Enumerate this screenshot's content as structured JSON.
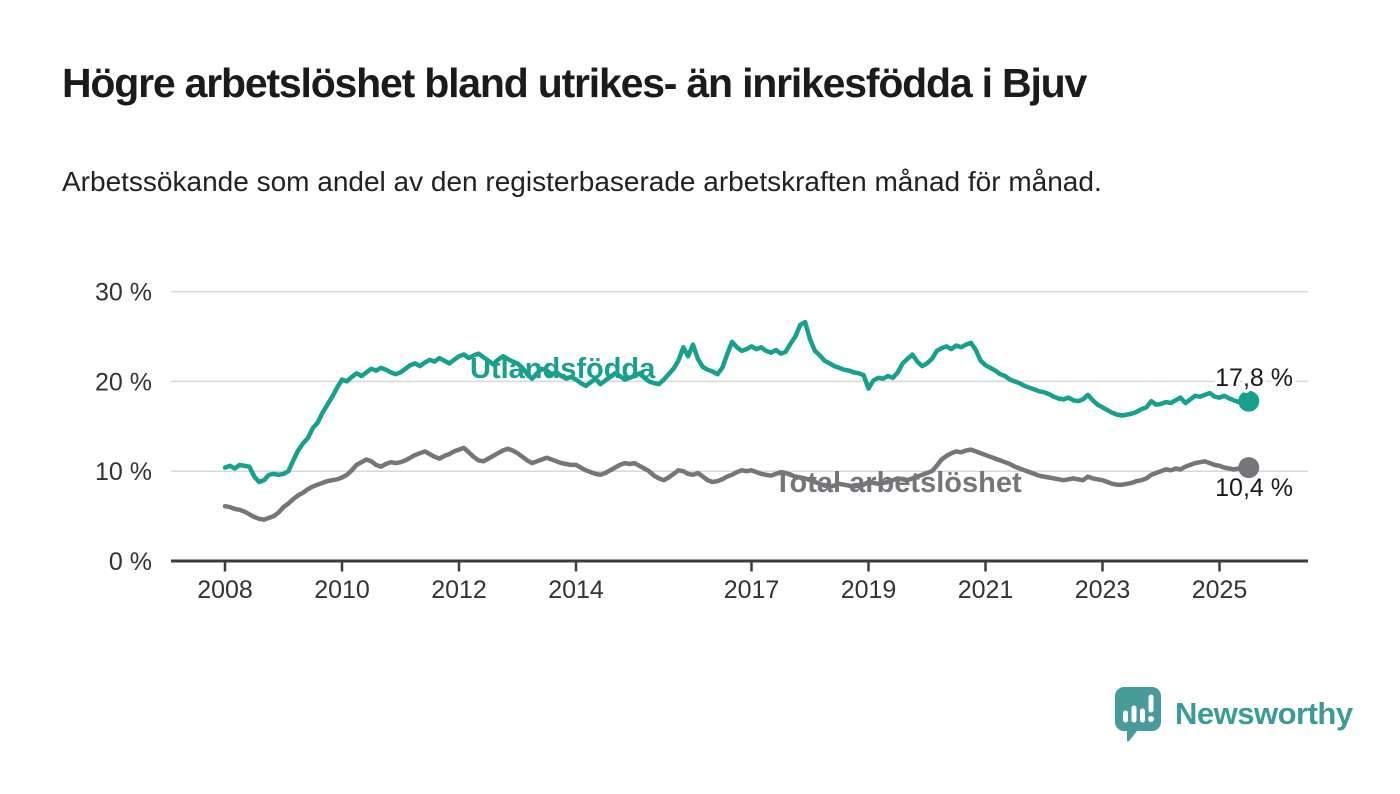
{
  "header": {
    "title": "Högre arbetslöshet bland utrikes- än inrikesfödda i Bjuv",
    "subtitle": "Arbetssökande som andel av den registerbaserade arbetskraften månad för månad."
  },
  "colors": {
    "teal_series": "#17A08C",
    "gray_series": "#76767A",
    "grid": "#D8D8D8",
    "axis": "#3B3B3B",
    "tick_text": "#333333",
    "value_text": "#1A1A1A",
    "logo_teal": "#479B98",
    "wordmark_teal": "#3E9A97"
  },
  "chart_data": {
    "type": "line",
    "title": "Högre arbetslöshet bland utrikes- än inrikesfödda i Bjuv",
    "subtitle": "Arbetssökande som andel av den registerbaserade arbetskraften månad för månad.",
    "x_start_year": 2008,
    "x_months_per_point": 1,
    "x_tick_years": [
      2008,
      2010,
      2012,
      2014,
      2017,
      2019,
      2021,
      2023,
      2025
    ],
    "x_tick_labels": [
      "2008",
      "2010",
      "2012",
      "2014",
      "2017",
      "2019",
      "2021",
      "2023",
      "2025"
    ],
    "y_ticks": [
      0,
      10,
      20,
      30
    ],
    "y_tick_labels": [
      "0 %",
      "10 %",
      "20 %",
      "30 %"
    ],
    "ylim": [
      0,
      30
    ],
    "grid": true,
    "legend_position": "inline-labels",
    "series": [
      {
        "name": "Utlandsfödda",
        "end_label": "17,8 %",
        "end_value": 17.8,
        "color": "#17A08C",
        "values": [
          10.4,
          10.6,
          10.3,
          10.7,
          10.6,
          10.5,
          9.4,
          8.8,
          9.0,
          9.6,
          9.7,
          9.6,
          9.7,
          10.0,
          11.2,
          12.3,
          13.1,
          13.7,
          14.8,
          15.4,
          16.5,
          17.4,
          18.3,
          19.3,
          20.2,
          20.0,
          20.5,
          20.9,
          20.6,
          21.0,
          21.4,
          21.2,
          21.5,
          21.3,
          21.0,
          20.8,
          21.0,
          21.4,
          21.8,
          22.0,
          21.7,
          22.1,
          22.4,
          22.2,
          22.6,
          22.3,
          22.0,
          22.4,
          22.8,
          23.0,
          22.6,
          22.9,
          23.1,
          22.7,
          22.3,
          21.9,
          22.4,
          22.8,
          22.5,
          22.2,
          22.0,
          21.5,
          20.8,
          20.3,
          20.9,
          21.4,
          21.2,
          20.8,
          21.0,
          20.6,
          20.3,
          20.5,
          20.2,
          19.8,
          19.5,
          19.9,
          20.3,
          19.7,
          20.1,
          20.5,
          20.9,
          20.6,
          20.2,
          20.4,
          20.6,
          20.9,
          20.4,
          20.0,
          19.8,
          19.7,
          20.2,
          20.8,
          21.4,
          22.3,
          23.8,
          22.8,
          24.1,
          22.5,
          21.6,
          21.3,
          21.1,
          20.8,
          21.5,
          23.0,
          24.4,
          23.8,
          23.4,
          23.6,
          23.9,
          23.6,
          23.8,
          23.4,
          23.2,
          23.5,
          23.1,
          23.3,
          24.2,
          25.0,
          26.3,
          26.6,
          24.7,
          23.4,
          22.9,
          22.3,
          22.0,
          21.7,
          21.5,
          21.3,
          21.2,
          21.0,
          20.9,
          20.7,
          19.2,
          20.1,
          20.4,
          20.3,
          20.6,
          20.4,
          21.0,
          22.0,
          22.5,
          23.0,
          22.2,
          21.7,
          22.0,
          22.5,
          23.4,
          23.7,
          23.9,
          23.6,
          24.0,
          23.8,
          24.1,
          24.3,
          23.5,
          22.3,
          21.8,
          21.5,
          21.2,
          20.8,
          20.6,
          20.2,
          20.0,
          19.8,
          19.5,
          19.3,
          19.1,
          18.9,
          18.8,
          18.6,
          18.3,
          18.1,
          18.0,
          18.2,
          17.9,
          17.8,
          18.0,
          18.5,
          17.9,
          17.4,
          17.1,
          16.8,
          16.5,
          16.3,
          16.2,
          16.3,
          16.4,
          16.6,
          16.9,
          17.1,
          17.8,
          17.4,
          17.5,
          17.7,
          17.6,
          17.9,
          18.2,
          17.6,
          18.0,
          18.4,
          18.3,
          18.5,
          18.7,
          18.3,
          18.2,
          18.4,
          18.1,
          17.9,
          17.7,
          17.6,
          17.8
        ]
      },
      {
        "name": "Total arbetslöshet",
        "end_label": "10,4 %",
        "end_value": 10.4,
        "color": "#76767A",
        "values": [
          6.1,
          6.0,
          5.8,
          5.7,
          5.5,
          5.2,
          4.9,
          4.7,
          4.6,
          4.8,
          5.0,
          5.4,
          6.0,
          6.4,
          6.9,
          7.3,
          7.6,
          8.0,
          8.3,
          8.5,
          8.7,
          8.9,
          9.0,
          9.1,
          9.3,
          9.6,
          10.1,
          10.7,
          11.0,
          11.3,
          11.1,
          10.7,
          10.5,
          10.8,
          11.0,
          10.9,
          11.0,
          11.2,
          11.5,
          11.8,
          12.0,
          12.2,
          11.9,
          11.6,
          11.4,
          11.7,
          11.9,
          12.2,
          12.4,
          12.6,
          12.1,
          11.6,
          11.2,
          11.1,
          11.4,
          11.7,
          12.0,
          12.3,
          12.5,
          12.3,
          12.0,
          11.6,
          11.2,
          10.9,
          11.1,
          11.3,
          11.5,
          11.3,
          11.1,
          10.9,
          10.8,
          10.7,
          10.7,
          10.4,
          10.1,
          9.9,
          9.7,
          9.6,
          9.8,
          10.1,
          10.4,
          10.7,
          10.9,
          10.8,
          10.9,
          10.6,
          10.3,
          10.0,
          9.5,
          9.2,
          9.0,
          9.3,
          9.7,
          10.1,
          10.0,
          9.7,
          9.6,
          9.8,
          9.4,
          9.0,
          8.8,
          8.9,
          9.1,
          9.4,
          9.6,
          9.9,
          10.1,
          10.0,
          10.1,
          9.9,
          9.7,
          9.6,
          9.5,
          9.7,
          9.9,
          9.8,
          9.6,
          9.4,
          9.3,
          9.2,
          9.0,
          8.8,
          8.6,
          8.4,
          8.3,
          8.4,
          8.6,
          8.5,
          8.4,
          8.3,
          8.4,
          8.5,
          8.8,
          8.7,
          8.6,
          8.7,
          8.8,
          9.0,
          9.2,
          9.1,
          9.0,
          9.2,
          9.4,
          9.6,
          9.8,
          10.0,
          10.6,
          11.3,
          11.7,
          12.0,
          12.2,
          12.1,
          12.3,
          12.4,
          12.2,
          12.0,
          11.8,
          11.6,
          11.4,
          11.2,
          11.0,
          10.8,
          10.5,
          10.3,
          10.1,
          9.9,
          9.7,
          9.5,
          9.4,
          9.3,
          9.2,
          9.1,
          9.0,
          9.1,
          9.2,
          9.1,
          9.0,
          9.4,
          9.2,
          9.1,
          9.0,
          8.8,
          8.6,
          8.5,
          8.5,
          8.6,
          8.7,
          8.9,
          9.0,
          9.2,
          9.6,
          9.8,
          10.0,
          10.2,
          10.1,
          10.3,
          10.2,
          10.5,
          10.7,
          10.9,
          11.0,
          11.1,
          10.9,
          10.7,
          10.6,
          10.4,
          10.3,
          10.2,
          10.3,
          10.5,
          10.4
        ]
      }
    ]
  },
  "footer": {
    "brand": "Newsworthy"
  }
}
